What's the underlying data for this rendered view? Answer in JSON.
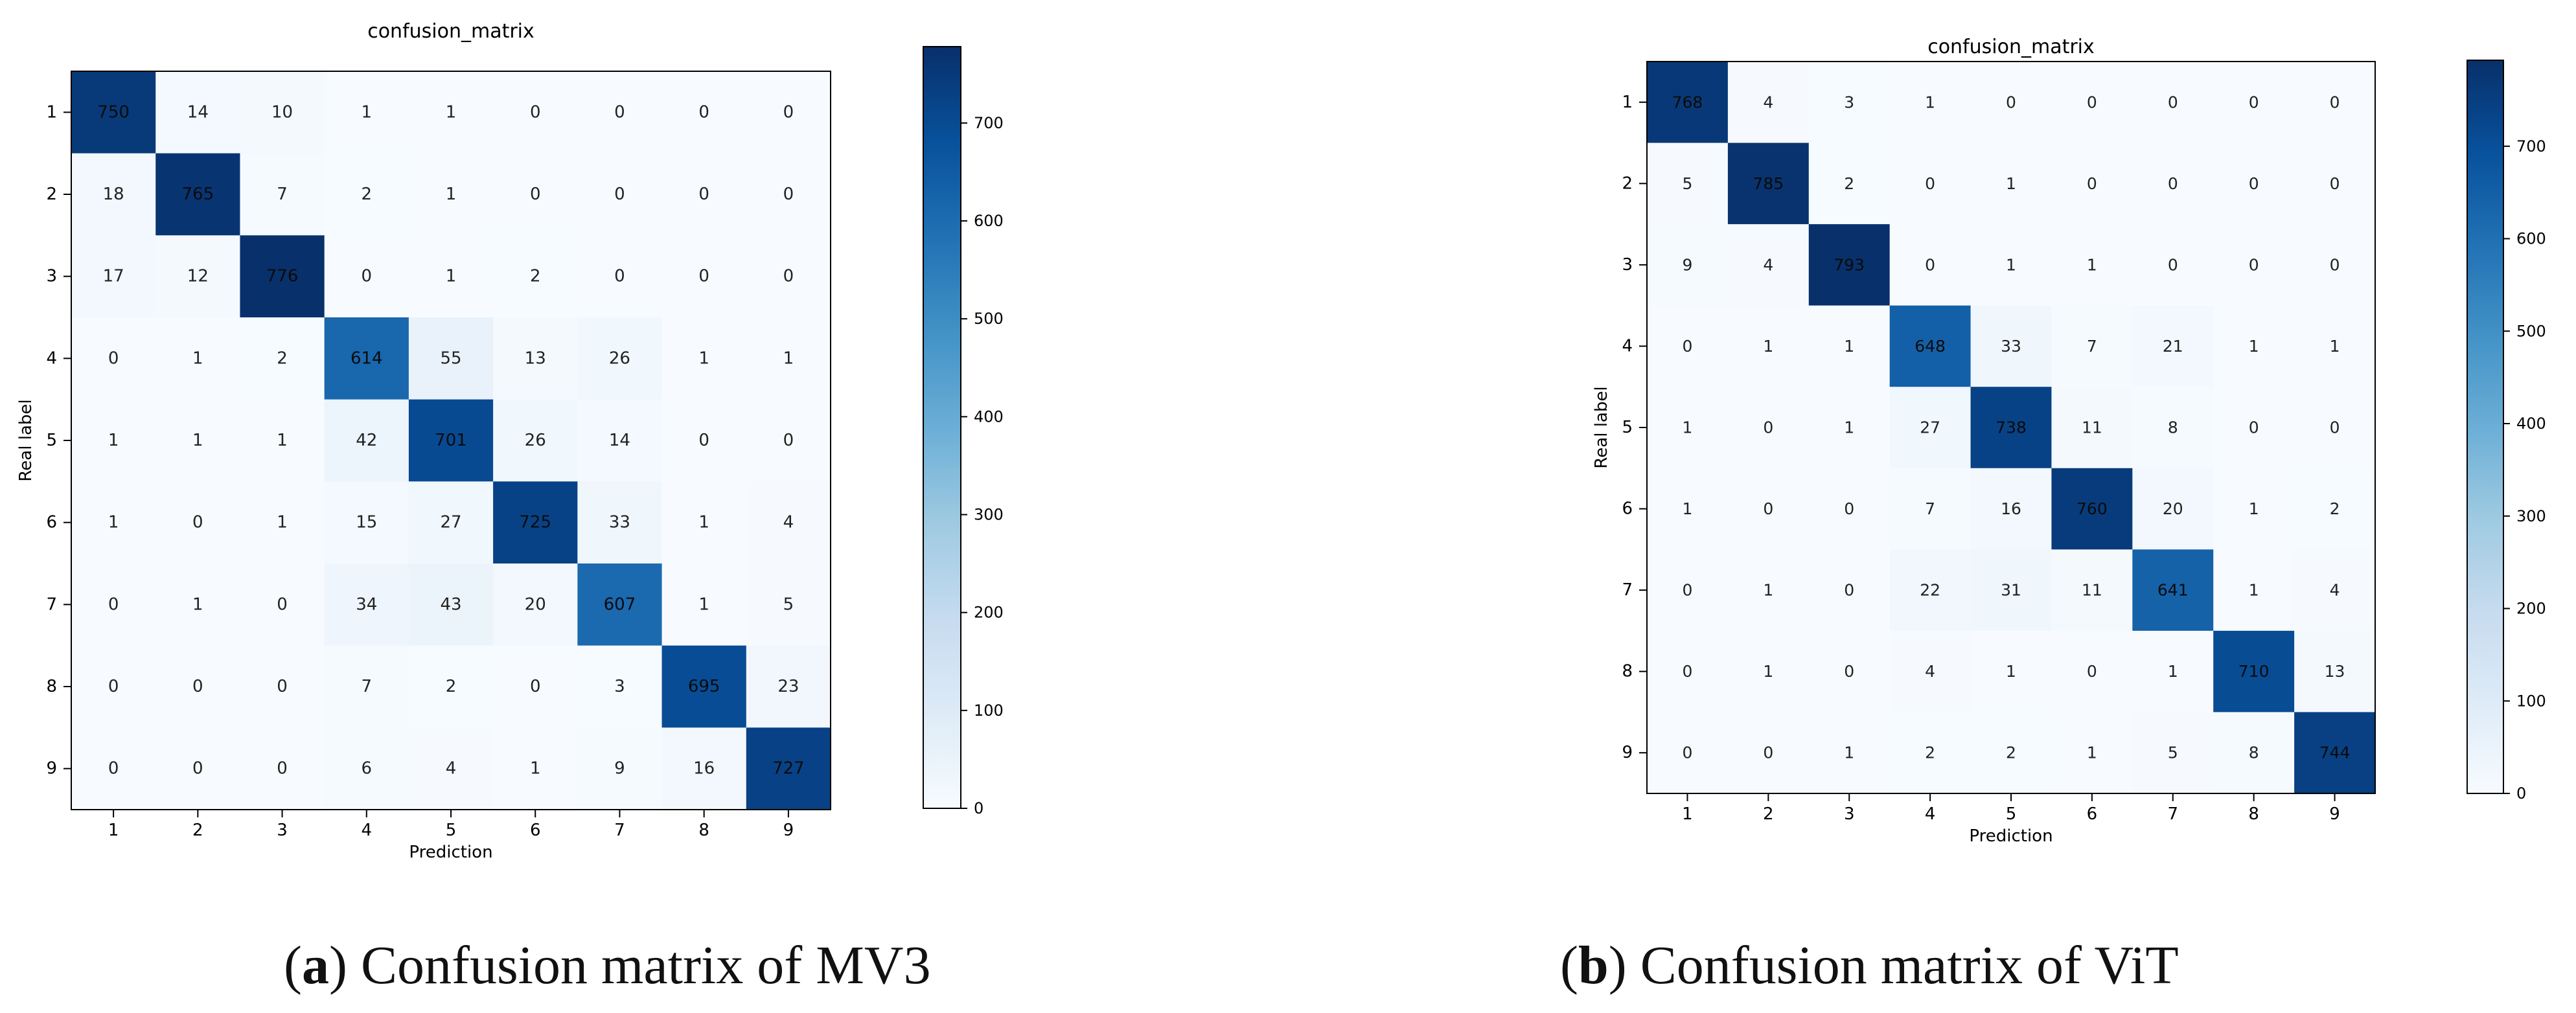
{
  "chart_data": [
    {
      "type": "heatmap",
      "title": "confusion_matrix",
      "xlabel": "Prediction",
      "ylabel": "Real label",
      "x_tick_labels": [
        "1",
        "2",
        "3",
        "4",
        "5",
        "6",
        "7",
        "8",
        "9"
      ],
      "y_tick_labels": [
        "1",
        "2",
        "3",
        "4",
        "5",
        "6",
        "7",
        "8",
        "9"
      ],
      "colorbar_ticks": [
        "0",
        "100",
        "200",
        "300",
        "400",
        "500",
        "600",
        "700"
      ],
      "colorbar_range": [
        0,
        778
      ],
      "colormap": [
        "#f7fbff",
        "#deebf7",
        "#c6dbef",
        "#9ecae1",
        "#6baed6",
        "#4292c6",
        "#2171b5",
        "#08519c",
        "#08306b"
      ],
      "matrix": [
        [
          750,
          14,
          10,
          1,
          1,
          0,
          0,
          0,
          0
        ],
        [
          18,
          765,
          7,
          2,
          1,
          0,
          0,
          0,
          0
        ],
        [
          17,
          12,
          776,
          0,
          1,
          2,
          0,
          0,
          0
        ],
        [
          0,
          1,
          2,
          614,
          55,
          13,
          26,
          1,
          1
        ],
        [
          1,
          1,
          1,
          42,
          701,
          26,
          14,
          0,
          0
        ],
        [
          1,
          0,
          1,
          15,
          27,
          725,
          33,
          1,
          4
        ],
        [
          0,
          1,
          0,
          34,
          43,
          20,
          607,
          1,
          5
        ],
        [
          0,
          0,
          0,
          7,
          2,
          0,
          3,
          695,
          23
        ],
        [
          0,
          0,
          0,
          6,
          4,
          1,
          9,
          16,
          727
        ]
      ]
    },
    {
      "type": "heatmap",
      "title": "confusion_matrix",
      "xlabel": "Prediction",
      "ylabel": "Real label",
      "x_tick_labels": [
        "1",
        "2",
        "3",
        "4",
        "5",
        "6",
        "7",
        "8",
        "9"
      ],
      "y_tick_labels": [
        "1",
        "2",
        "3",
        "4",
        "5",
        "6",
        "7",
        "8",
        "9"
      ],
      "colorbar_ticks": [
        "0",
        "100",
        "200",
        "300",
        "400",
        "500",
        "600",
        "700"
      ],
      "colorbar_range": [
        0,
        793
      ],
      "colormap": [
        "#f7fbff",
        "#deebf7",
        "#c6dbef",
        "#9ecae1",
        "#6baed6",
        "#4292c6",
        "#2171b5",
        "#08519c",
        "#08306b"
      ],
      "matrix": [
        [
          768,
          4,
          3,
          1,
          0,
          0,
          0,
          0,
          0
        ],
        [
          5,
          785,
          2,
          0,
          1,
          0,
          0,
          0,
          0
        ],
        [
          9,
          4,
          793,
          0,
          1,
          1,
          0,
          0,
          0
        ],
        [
          0,
          1,
          1,
          648,
          33,
          7,
          21,
          1,
          1
        ],
        [
          1,
          0,
          1,
          27,
          738,
          11,
          8,
          0,
          0
        ],
        [
          1,
          0,
          0,
          7,
          16,
          760,
          20,
          1,
          2
        ],
        [
          0,
          1,
          0,
          22,
          31,
          11,
          641,
          1,
          4
        ],
        [
          0,
          1,
          0,
          4,
          1,
          0,
          1,
          710,
          13
        ],
        [
          0,
          0,
          1,
          2,
          2,
          1,
          5,
          8,
          744
        ]
      ]
    }
  ],
  "captions": [
    {
      "letter": "a",
      "text": "Confusion matrix of MV3"
    },
    {
      "letter": "b",
      "text": "Confusion matrix of ViT"
    }
  ]
}
